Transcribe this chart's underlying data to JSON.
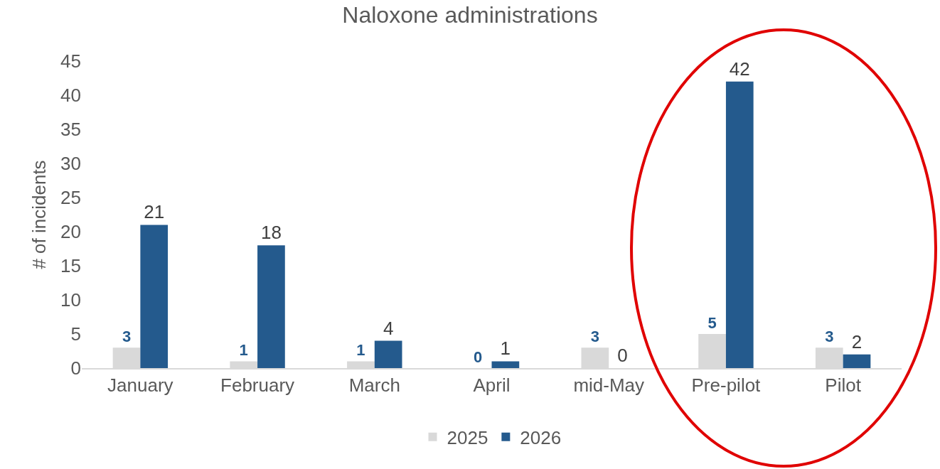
{
  "chart_data": {
    "type": "bar",
    "title": "Naloxone administrations",
    "ylabel": "# of incidents",
    "categories": [
      "January",
      "February",
      "March",
      "April",
      "mid-May",
      "Pre-pilot",
      "Pilot"
    ],
    "series": [
      {
        "name": "2025",
        "color": "#d9d9d9",
        "values": [
          3,
          1,
          1,
          0,
          3,
          5,
          3
        ]
      },
      {
        "name": "2026",
        "color": "#245a8d",
        "values": [
          21,
          18,
          4,
          1,
          0,
          42,
          2
        ]
      }
    ],
    "ylim": [
      0,
      45
    ],
    "yticks": [
      0,
      5,
      10,
      15,
      20,
      25,
      30,
      35,
      40,
      45
    ],
    "grid": false,
    "legend": "bottom",
    "data_labels": true
  }
}
